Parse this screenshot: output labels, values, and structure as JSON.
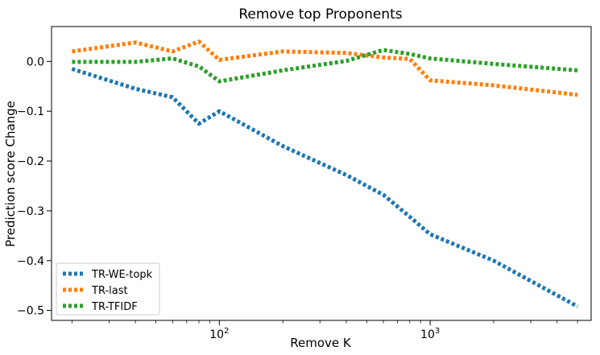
{
  "chart_data": {
    "type": "line",
    "title": "Remove top Proponents",
    "xlabel": "Remove K",
    "ylabel": "Prediction score Change",
    "xscale": "log",
    "xlim": [
      16,
      5800
    ],
    "ylim": [
      -0.52,
      0.07
    ],
    "x_ticks": [
      {
        "value": 100,
        "base": "10",
        "exp": "2"
      },
      {
        "value": 1000,
        "base": "10",
        "exp": "3"
      }
    ],
    "y_ticks": [
      {
        "value": 0.0,
        "label": "0.0"
      },
      {
        "value": -0.1,
        "label": "−0.1"
      },
      {
        "value": -0.2,
        "label": "−0.2"
      },
      {
        "value": -0.3,
        "label": "−0.3"
      },
      {
        "value": -0.4,
        "label": "−0.4"
      },
      {
        "value": -0.5,
        "label": "−0.5"
      }
    ],
    "grid": false,
    "legend_position": "lower-left",
    "series": [
      {
        "name": "TR-WE-topk",
        "color": "#1f77b4",
        "x": [
          20,
          40,
          60,
          80,
          100,
          200,
          400,
          600,
          800,
          1000,
          2000,
          5000
        ],
        "y": [
          -0.015,
          -0.055,
          -0.072,
          -0.125,
          -0.1,
          -0.17,
          -0.228,
          -0.268,
          -0.312,
          -0.347,
          -0.4,
          -0.492
        ]
      },
      {
        "name": "TR-last",
        "color": "#ff7f0e",
        "x": [
          20,
          40,
          60,
          80,
          100,
          200,
          400,
          600,
          800,
          1000,
          2000,
          5000
        ],
        "y": [
          0.02,
          0.038,
          0.02,
          0.04,
          0.003,
          0.02,
          0.017,
          0.008,
          0.005,
          -0.038,
          -0.048,
          -0.067
        ]
      },
      {
        "name": "TR-TFIDF",
        "color": "#2ca02c",
        "x": [
          20,
          40,
          60,
          80,
          100,
          200,
          400,
          600,
          800,
          1000,
          2000,
          5000
        ],
        "y": [
          -0.001,
          -0.001,
          0.006,
          -0.01,
          -0.04,
          -0.018,
          0.001,
          0.023,
          0.015,
          0.006,
          -0.005,
          -0.018
        ]
      }
    ]
  }
}
